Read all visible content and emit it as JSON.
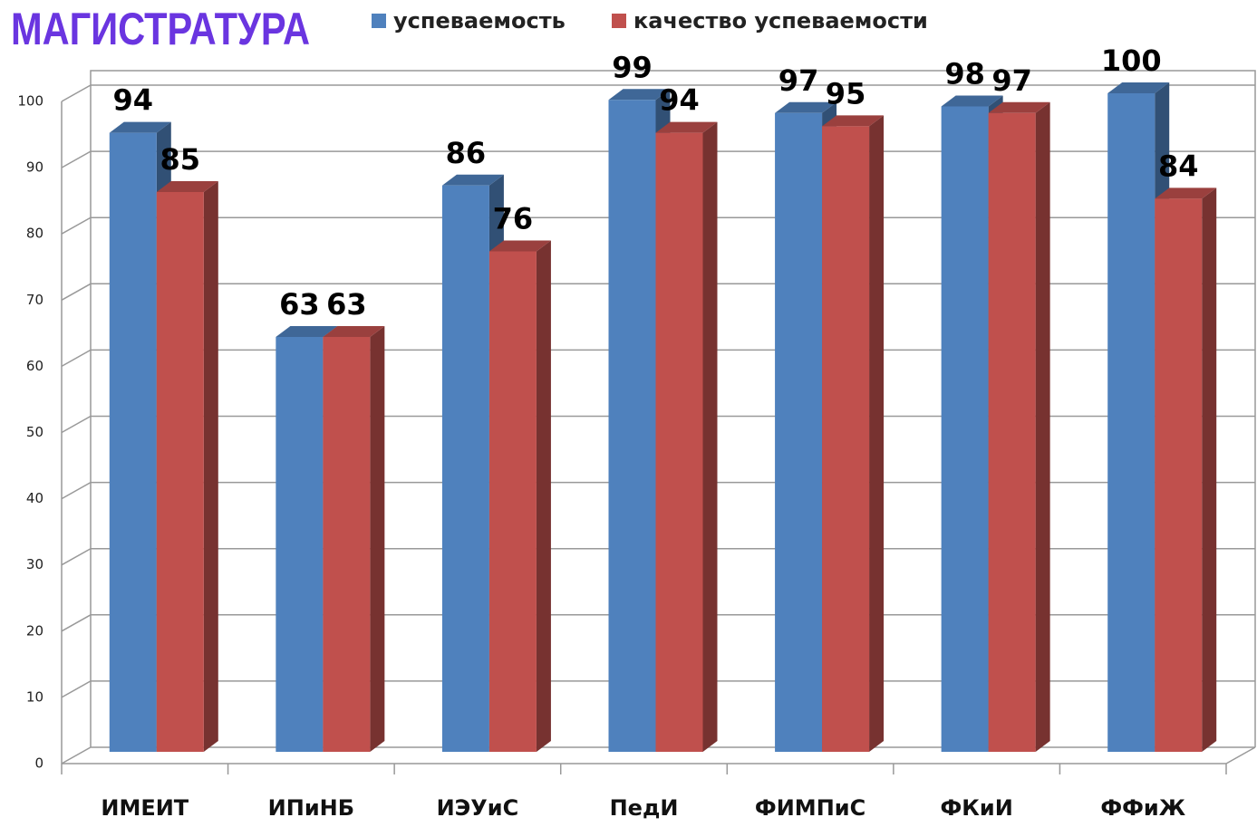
{
  "chart_data": {
    "type": "bar3d",
    "title": "МАГИСТРАТУРА",
    "categories": [
      "ИМЕИТ",
      "ИПиНБ",
      "ИЭУиС",
      "ПедИ",
      "ФИМПиС",
      "ФКиИ",
      "ФФиЖ"
    ],
    "series": [
      {
        "name": "успеваемость",
        "color": "#4f81bd",
        "values": [
          94,
          63,
          86,
          99,
          97,
          98,
          100
        ]
      },
      {
        "name": "качество успеваемости",
        "color": "#c0504d",
        "values": [
          85,
          63,
          76,
          94,
          95,
          97,
          84
        ]
      }
    ],
    "ylim": [
      0,
      100
    ],
    "yticks": [
      0,
      10,
      20,
      30,
      40,
      50,
      60,
      70,
      80,
      90,
      100
    ],
    "grid": true
  }
}
